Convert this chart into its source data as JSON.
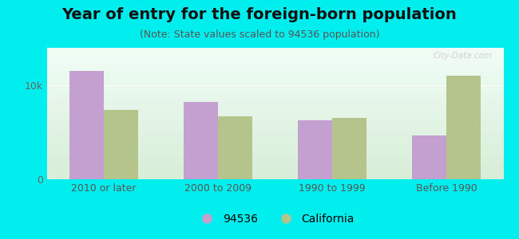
{
  "title": "Year of entry for the foreign-born population",
  "subtitle": "(Note: State values scaled to 94536 population)",
  "categories": [
    "2010 or later",
    "2000 to 2009",
    "1990 to 1999",
    "Before 1990"
  ],
  "values_94536": [
    11500,
    8200,
    6300,
    4700
  ],
  "values_california": [
    7400,
    6700,
    6500,
    11000
  ],
  "color_94536": "#c4a0d0",
  "color_california": "#b5c48a",
  "background_outer": "#00eeee",
  "bar_width": 0.3,
  "ylim": [
    0,
    14000
  ],
  "ytick_vals": [
    0,
    10000
  ],
  "ytick_labels": [
    "0",
    "10k"
  ],
  "legend_label_94536": "94536",
  "legend_label_california": "California",
  "watermark": "City-Data.com",
  "title_fontsize": 14,
  "subtitle_fontsize": 9,
  "tick_fontsize": 9,
  "legend_fontsize": 10
}
